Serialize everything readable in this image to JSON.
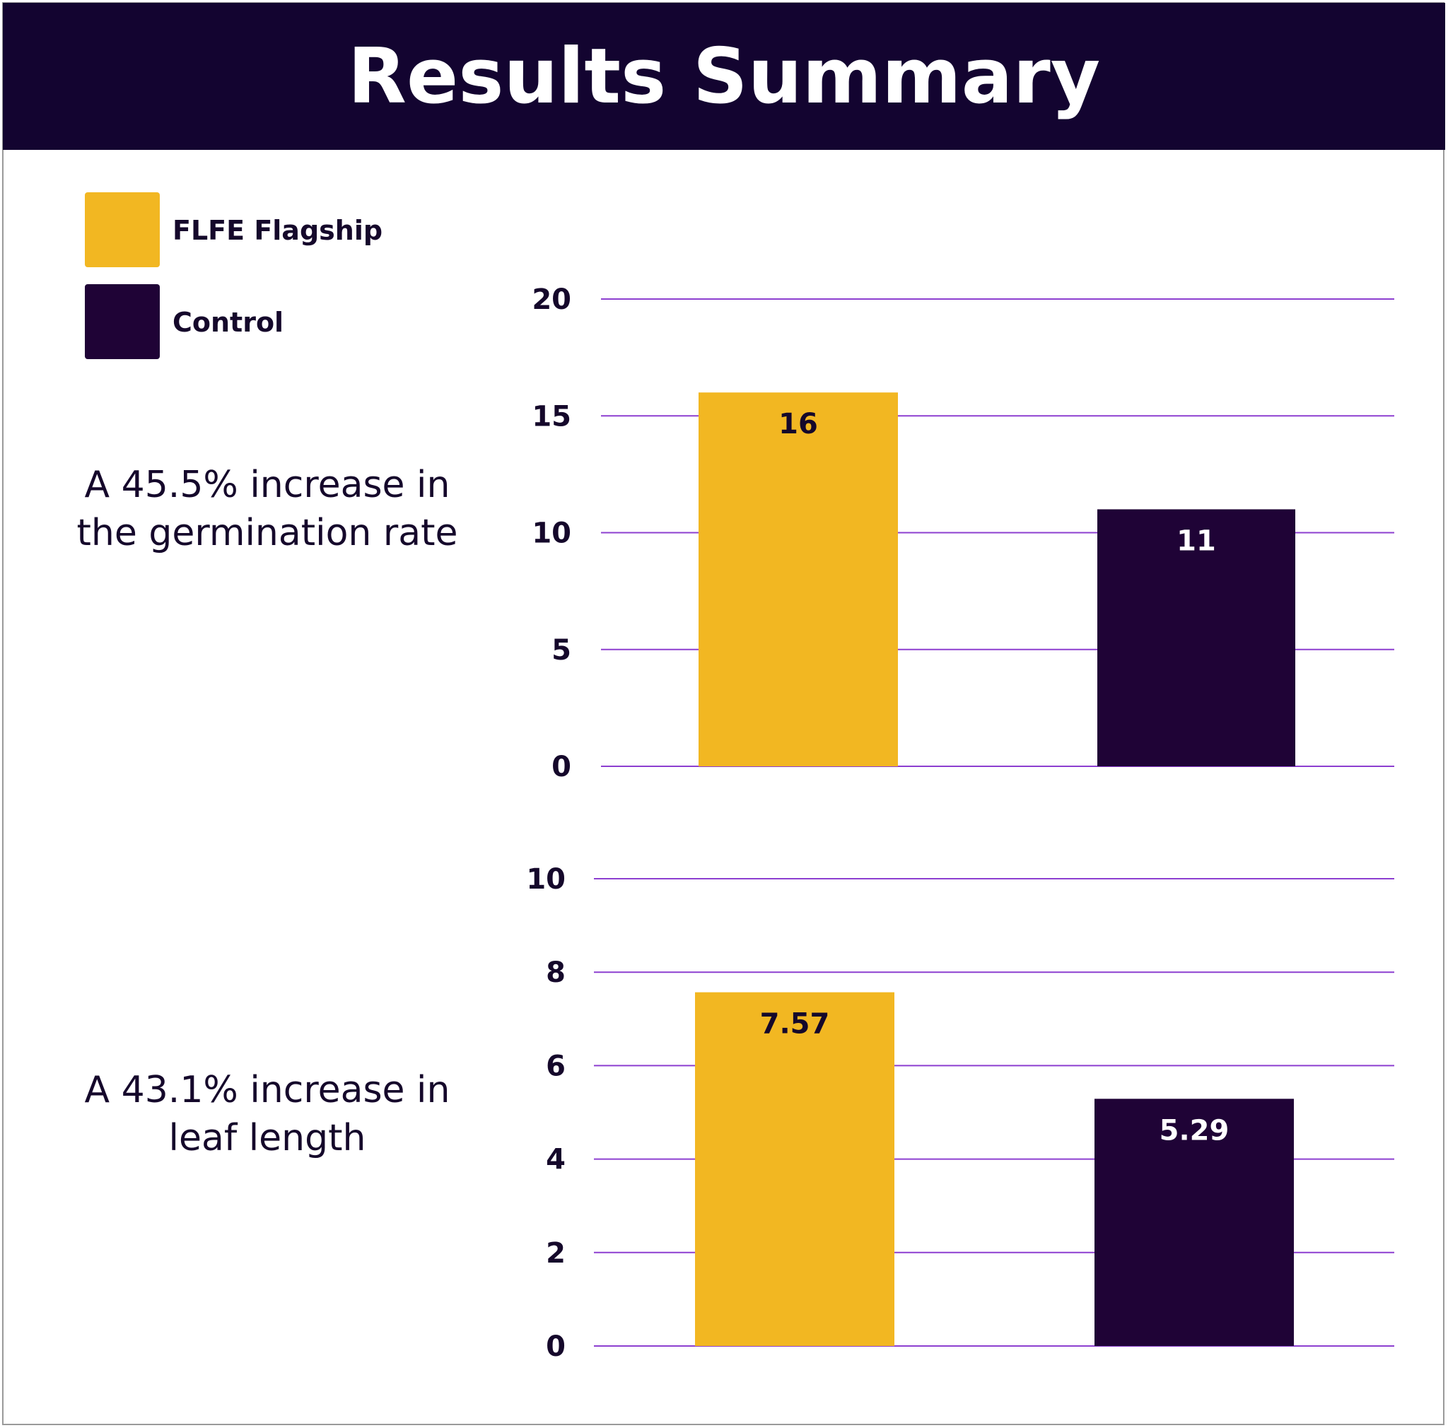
{
  "header": {
    "title": "Results Summary"
  },
  "legend": {
    "items": [
      {
        "label": "FLFE Flagship",
        "color": "#f2b722"
      },
      {
        "label": "Control",
        "color": "#1f0336"
      }
    ]
  },
  "captions": {
    "germination": "A 45.5% increase in the germination rate",
    "leaf": "A 43.1% increase in leaf length"
  },
  "colors": {
    "grid": "#8d3fd0",
    "flagship": "#f2b722",
    "control": "#1f0336",
    "header": "#130430"
  },
  "chart_data": [
    {
      "type": "bar",
      "categories": [
        "FLFE Flagship",
        "Control"
      ],
      "values": [
        16,
        11
      ],
      "data_labels": [
        "16",
        "11"
      ],
      "yticks": [
        "0",
        "5",
        "10",
        "15",
        "20"
      ],
      "ylim": [
        0,
        20
      ],
      "grid": true,
      "legend": "top-left",
      "title": "",
      "xlabel": "",
      "ylabel": ""
    },
    {
      "type": "bar",
      "categories": [
        "FLFE Flagship",
        "Control"
      ],
      "values": [
        7.57,
        5.29
      ],
      "data_labels": [
        "7.57",
        "5.29"
      ],
      "yticks": [
        "0",
        "2",
        "4",
        "6",
        "8",
        "10"
      ],
      "ylim": [
        0,
        10
      ],
      "grid": true,
      "legend": "top-left",
      "title": "",
      "xlabel": "",
      "ylabel": ""
    }
  ]
}
